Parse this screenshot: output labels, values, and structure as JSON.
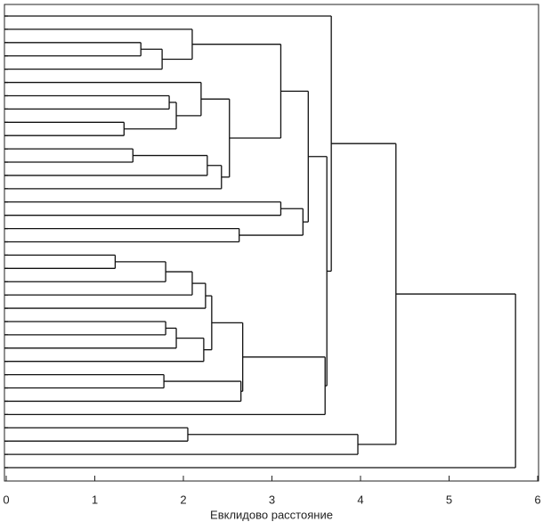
{
  "chart_data": {
    "type": "dendrogram",
    "xlabel": "Евклидово расстояние",
    "xlim": [
      0,
      6
    ],
    "xticks": [
      0,
      1,
      2,
      3,
      4,
      5,
      6
    ],
    "color": "#111111",
    "tree": {
      "height": 5.75,
      "children": [
        {
          "height": 4.4,
          "children": [
            {
              "height": 3.67,
              "children": [
                null,
                {
                  "height": 3.62,
                  "children": [
                    {
                      "height": 3.41,
                      "children": [
                        {
                          "height": 3.1,
                          "children": [
                            {
                              "height": 2.1,
                              "children": [
                                null,
                                {
                                  "height": 1.76,
                                  "children": [
                                    {
                                      "height": 1.52,
                                      "children": [
                                        null,
                                        null
                                      ]
                                    },
                                    null
                                  ]
                                }
                              ]
                            },
                            {
                              "height": 2.52,
                              "children": [
                                {
                                  "height": 2.2,
                                  "children": [
                                    null,
                                    {
                                      "height": 1.92,
                                      "children": [
                                        {
                                          "height": 1.84,
                                          "children": [
                                            null,
                                            null
                                          ]
                                        },
                                        {
                                          "height": 1.33,
                                          "children": [
                                            null,
                                            null
                                          ]
                                        }
                                      ]
                                    }
                                  ]
                                },
                                {
                                  "height": 2.43,
                                  "children": [
                                    {
                                      "height": 2.27,
                                      "children": [
                                        {
                                          "height": 1.43,
                                          "children": [
                                            null,
                                            null
                                          ]
                                        },
                                        null
                                      ]
                                    },
                                    null
                                  ]
                                }
                              ]
                            }
                          ]
                        },
                        {
                          "height": 3.35,
                          "children": [
                            {
                              "height": 3.1,
                              "children": [
                                null,
                                null
                              ]
                            },
                            {
                              "height": 2.63,
                              "children": [
                                null,
                                null
                              ]
                            }
                          ]
                        }
                      ]
                    },
                    {
                      "height": 3.6,
                      "children": [
                        {
                          "height": 2.67,
                          "children": [
                            {
                              "height": 2.32,
                              "children": [
                                {
                                  "height": 2.25,
                                  "children": [
                                    {
                                      "height": 2.1,
                                      "children": [
                                        {
                                          "height": 1.8,
                                          "children": [
                                            {
                                              "height": 1.23,
                                              "children": [
                                                null,
                                                null
                                              ]
                                            },
                                            null
                                          ]
                                        },
                                        null
                                      ]
                                    },
                                    null
                                  ]
                                },
                                {
                                  "height": 2.23,
                                  "children": [
                                    {
                                      "height": 1.92,
                                      "children": [
                                        {
                                          "height": 1.8,
                                          "children": [
                                            null,
                                            null
                                          ]
                                        },
                                        null
                                      ]
                                    },
                                    null
                                  ]
                                }
                              ]
                            },
                            {
                              "height": 2.65,
                              "children": [
                                {
                                  "height": 1.78,
                                  "children": [
                                    null,
                                    null
                                  ]
                                },
                                null
                              ]
                            }
                          ]
                        },
                        null
                      ]
                    }
                  ]
                }
              ]
            },
            {
              "height": 3.97,
              "children": [
                {
                  "height": 2.05,
                  "children": [
                    null,
                    null
                  ]
                },
                null
              ]
            }
          ]
        },
        null
      ]
    }
  }
}
